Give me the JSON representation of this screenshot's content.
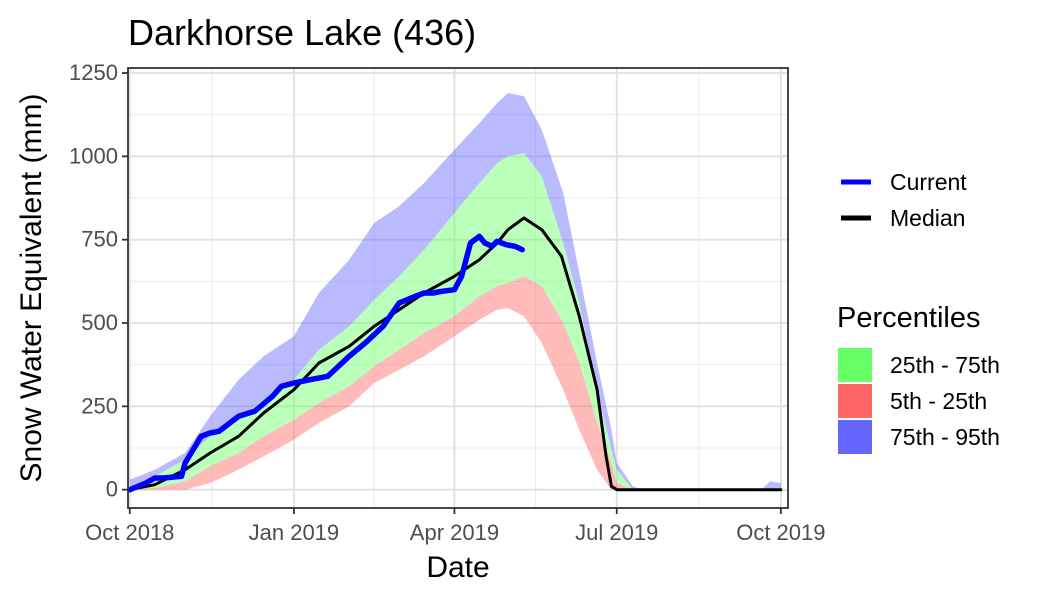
{
  "chart_data": {
    "type": "area",
    "title": "Darkhorse Lake (436)",
    "xlabel": "Date",
    "ylabel": "Snow Water Equivalent (mm)",
    "xlim": [
      "2018-09-30",
      "2019-10-05"
    ],
    "ylim": [
      -55,
      1265
    ],
    "x_ticks": [
      {
        "date": "2018-10-01",
        "label": "Oct 2018"
      },
      {
        "date": "2019-01-01",
        "label": "Jan 2019"
      },
      {
        "date": "2019-04-01",
        "label": "Apr 2019"
      },
      {
        "date": "2019-07-01",
        "label": "Jul 2019"
      },
      {
        "date": "2019-10-01",
        "label": "Oct 2019"
      }
    ],
    "y_ticks": [
      0,
      250,
      500,
      750,
      1000,
      1250
    ],
    "grid": true,
    "legend": {
      "placement": "right",
      "lines_title": "",
      "lines": [
        {
          "label": "Current",
          "color": "#0000ff"
        },
        {
          "label": "Median",
          "color": "#000000"
        }
      ],
      "fills_title": "Percentiles",
      "fills": [
        {
          "label": "25th - 75th",
          "color": "#66ff66"
        },
        {
          "label": "5th - 25th",
          "color": "#ff6666"
        },
        {
          "label": "75th - 95th",
          "color": "#6666ff"
        }
      ]
    },
    "bands": {
      "x": [
        "2018-10-01",
        "2018-10-15",
        "2018-11-01",
        "2018-11-15",
        "2018-12-01",
        "2018-12-15",
        "2019-01-01",
        "2019-01-15",
        "2019-02-01",
        "2019-02-15",
        "2019-03-01",
        "2019-03-15",
        "2019-04-01",
        "2019-04-15",
        "2019-04-25",
        "2019-05-01",
        "2019-05-10",
        "2019-05-20",
        "2019-06-01",
        "2019-06-10",
        "2019-06-20",
        "2019-06-28",
        "2019-07-01",
        "2019-07-10",
        "2019-07-15",
        "2019-08-01",
        "2019-09-01",
        "2019-09-20",
        "2019-09-25",
        "2019-10-01"
      ],
      "p5": [
        0,
        0,
        0,
        20,
        60,
        100,
        150,
        200,
        250,
        320,
        360,
        400,
        460,
        510,
        540,
        545,
        520,
        440,
        300,
        180,
        60,
        0,
        0,
        0,
        0,
        0,
        0,
        0,
        0,
        0
      ],
      "p25": [
        0,
        5,
        25,
        70,
        110,
        160,
        210,
        260,
        310,
        370,
        420,
        470,
        520,
        580,
        610,
        620,
        640,
        610,
        500,
        380,
        200,
        80,
        20,
        0,
        0,
        0,
        0,
        0,
        0,
        0
      ],
      "p75": [
        10,
        40,
        90,
        160,
        210,
        270,
        330,
        420,
        490,
        570,
        640,
        720,
        830,
        920,
        980,
        1000,
        1010,
        940,
        740,
        560,
        300,
        120,
        60,
        0,
        0,
        0,
        0,
        0,
        0,
        0
      ],
      "p95": [
        30,
        60,
        110,
        220,
        330,
        400,
        460,
        590,
        690,
        800,
        850,
        920,
        1020,
        1100,
        1160,
        1190,
        1180,
        1080,
        890,
        650,
        380,
        180,
        80,
        10,
        0,
        0,
        0,
        0,
        25,
        20
      ]
    },
    "series": [
      {
        "name": "Median",
        "color": "#000000",
        "x": [
          "2018-10-01",
          "2018-10-15",
          "2018-11-01",
          "2018-11-15",
          "2018-12-01",
          "2018-12-15",
          "2019-01-01",
          "2019-01-15",
          "2019-02-01",
          "2019-02-15",
          "2019-03-01",
          "2019-03-15",
          "2019-04-01",
          "2019-04-15",
          "2019-04-25",
          "2019-05-01",
          "2019-05-10",
          "2019-05-20",
          "2019-05-31",
          "2019-06-10",
          "2019-06-20",
          "2019-06-25",
          "2019-06-28",
          "2019-07-01",
          "2019-07-15",
          "2019-08-01",
          "2019-09-01",
          "2019-10-01"
        ],
        "values": [
          0,
          15,
          60,
          110,
          160,
          230,
          300,
          380,
          430,
          490,
          540,
          590,
          640,
          690,
          740,
          780,
          815,
          780,
          700,
          520,
          300,
          100,
          10,
          0,
          0,
          0,
          0,
          0
        ]
      },
      {
        "name": "Current",
        "color": "#0000ff",
        "x": [
          "2018-10-01",
          "2018-10-10",
          "2018-10-15",
          "2018-10-20",
          "2018-10-30",
          "2018-11-01",
          "2018-11-10",
          "2018-11-15",
          "2018-11-20",
          "2018-12-01",
          "2018-12-10",
          "2018-12-20",
          "2018-12-25",
          "2019-01-01",
          "2019-01-10",
          "2019-01-20",
          "2019-02-01",
          "2019-02-10",
          "2019-02-20",
          "2019-03-01",
          "2019-03-10",
          "2019-03-15",
          "2019-03-20",
          "2019-03-25",
          "2019-04-01",
          "2019-04-05",
          "2019-04-10",
          "2019-04-15",
          "2019-04-18",
          "2019-04-22",
          "2019-04-25",
          "2019-04-30",
          "2019-05-05",
          "2019-05-09"
        ],
        "values": [
          0,
          20,
          35,
          35,
          40,
          80,
          160,
          170,
          175,
          220,
          235,
          280,
          310,
          320,
          330,
          340,
          400,
          440,
          490,
          560,
          580,
          590,
          590,
          595,
          600,
          640,
          740,
          760,
          740,
          730,
          745,
          735,
          730,
          720
        ]
      }
    ]
  }
}
